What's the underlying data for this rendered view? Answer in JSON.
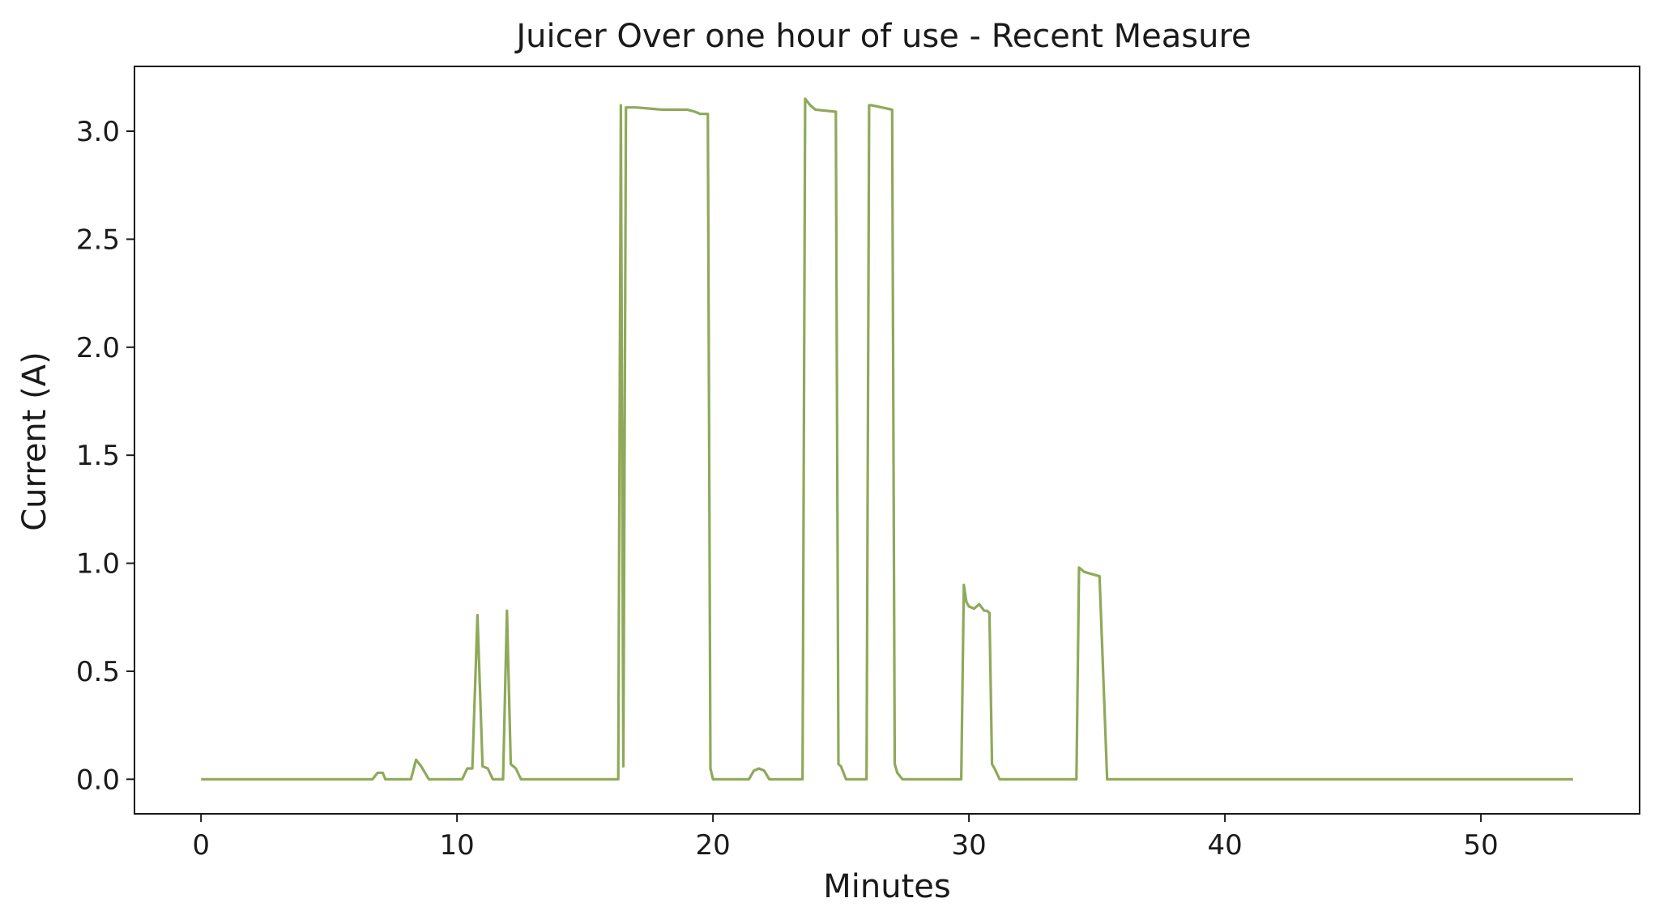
{
  "chart_data": {
    "type": "line",
    "title": "Juicer Over one hour of use - Recent Measure",
    "xlabel": "Minutes",
    "ylabel": "Current (A)",
    "xlim": [
      -2.6,
      56.2
    ],
    "ylim": [
      -0.16,
      3.3
    ],
    "x_ticks": [
      0,
      10,
      20,
      30,
      40,
      50
    ],
    "x_tick_labels": [
      "0",
      "10",
      "20",
      "30",
      "40",
      "50"
    ],
    "y_ticks": [
      0.0,
      0.5,
      1.0,
      1.5,
      2.0,
      2.5,
      3.0
    ],
    "y_tick_labels": [
      "0.0",
      "0.5",
      "1.0",
      "1.5",
      "2.0",
      "2.5",
      "3.0"
    ],
    "grid": false,
    "legend": "none",
    "line_color": "#8fa95a",
    "series": [
      {
        "x": [
          0.0,
          6.7,
          6.9,
          7.1,
          7.2,
          8.2,
          8.4,
          8.6,
          8.9,
          10.2,
          10.4,
          10.6,
          10.8,
          11.0,
          11.2,
          11.4,
          11.8,
          11.95,
          12.1,
          12.3,
          12.5,
          16.3,
          16.4,
          16.5,
          16.6,
          16.7,
          17.0,
          18.0,
          19.0,
          19.3,
          19.5,
          19.8,
          19.9,
          20.0,
          20.1,
          21.4,
          21.6,
          21.8,
          22.0,
          22.2,
          23.5,
          23.6,
          23.8,
          24.0,
          24.8,
          24.9,
          25.0,
          25.2,
          25.4,
          26.0,
          26.1,
          26.2,
          26.6,
          27.0,
          27.1,
          27.2,
          27.4,
          29.7,
          29.8,
          29.9,
          30.0,
          30.2,
          30.4,
          30.6,
          30.7,
          30.8,
          30.9,
          31.0,
          31.2,
          31.3,
          34.2,
          34.3,
          34.5,
          34.8,
          35.1,
          35.4,
          35.5,
          53.6
        ],
        "y": [
          0.0,
          0.0,
          0.03,
          0.03,
          0.0,
          0.0,
          0.09,
          0.06,
          0.0,
          0.0,
          0.05,
          0.05,
          0.76,
          0.06,
          0.05,
          0.0,
          0.0,
          0.78,
          0.07,
          0.05,
          0.0,
          0.0,
          3.12,
          0.06,
          3.11,
          3.11,
          3.11,
          3.1,
          3.1,
          3.09,
          3.08,
          3.08,
          0.05,
          0.0,
          0.0,
          0.0,
          0.04,
          0.05,
          0.04,
          0.0,
          0.0,
          3.15,
          3.12,
          3.1,
          3.09,
          0.07,
          0.06,
          0.0,
          0.0,
          0.0,
          3.12,
          3.12,
          3.11,
          3.1,
          0.07,
          0.03,
          0.0,
          0.0,
          0.9,
          0.82,
          0.8,
          0.79,
          0.81,
          0.78,
          0.78,
          0.77,
          0.07,
          0.05,
          0.0,
          0.0,
          0.0,
          0.98,
          0.96,
          0.95,
          0.94,
          0.0,
          0.0,
          0.0
        ]
      }
    ]
  }
}
